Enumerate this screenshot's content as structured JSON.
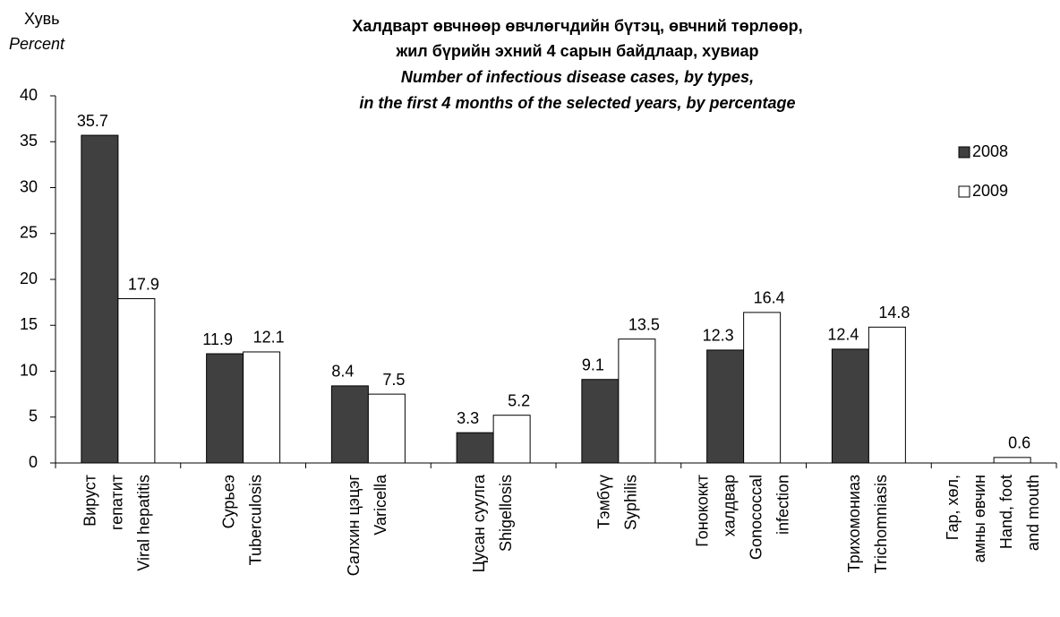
{
  "chart_data": {
    "type": "bar",
    "title": [
      "Халдварт өвчнөөр өвчлөгчдийн бүтэц, өвчний төрлөөр,",
      "жил бүрийн эхний  4 сарын байдлаар, хувиар"
    ],
    "subtitle": [
      "Number of infectious disease cases, by types,",
      "in the first 4 months of the selected years, by percentage"
    ],
    "y_label": "Хувь",
    "y_label_en": "Percent",
    "categories": [
      [
        "Вируст",
        "гепатит",
        "Viral hepatitis"
      ],
      [
        "Сурьеэ",
        "Tuberculosis"
      ],
      [
        "Салхин цэцэг",
        "Varicella"
      ],
      [
        "Цусан суулга",
        "Shigellosis"
      ],
      [
        "Тэмбүү",
        "Syphilis"
      ],
      [
        "Гонококкт",
        "халдвар",
        "Gonococcal",
        "infection"
      ],
      [
        "Трихомониаз",
        "Trichomniasis"
      ],
      [
        "Гар, хөл,",
        "амны өвчин",
        "Hand, foot",
        "and mouth"
      ]
    ],
    "series": [
      {
        "name": "2008",
        "color": "#404040",
        "values": [
          35.7,
          11.9,
          8.4,
          3.3,
          9.1,
          12.3,
          12.4,
          null
        ]
      },
      {
        "name": "2009",
        "color": "#ffffff",
        "values": [
          17.9,
          12.1,
          7.5,
          5.2,
          13.5,
          16.4,
          14.8,
          0.6
        ]
      }
    ],
    "ylim": [
      0,
      40
    ],
    "yticks": [
      0,
      5,
      10,
      15,
      20,
      25,
      30,
      35,
      40
    ],
    "legend": "right"
  }
}
